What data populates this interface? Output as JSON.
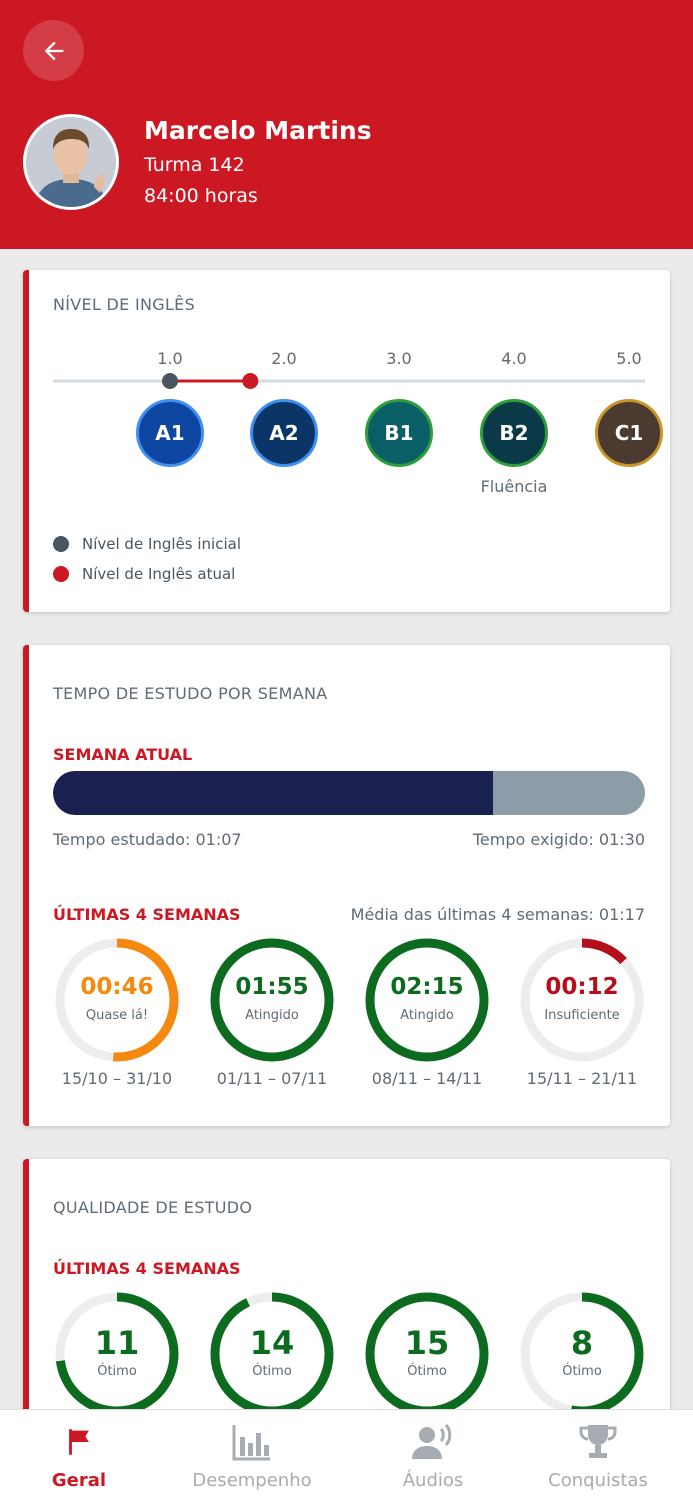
{
  "header": {
    "name": "Marcelo Martins",
    "class": "Turma 142",
    "hours": "84:00 horas"
  },
  "english_level": {
    "title": "NÍVEL DE INGLÊS",
    "ticks": [
      "1.0",
      "2.0",
      "3.0",
      "4.0",
      "5.0"
    ],
    "initial_level": 1.0,
    "current_level": 1.7,
    "levels": [
      {
        "label": "A1",
        "fill": "#0d47a1",
        "border": "#3f8ff0"
      },
      {
        "label": "A2",
        "fill": "#0b3566",
        "border": "#3f8ff0"
      },
      {
        "label": "B1",
        "fill": "#0a5e66",
        "border": "#2e9e3a"
      },
      {
        "label": "B2",
        "fill": "#0a3a48",
        "border": "#2e9e3a"
      },
      {
        "label": "C1",
        "fill": "#4a3a30",
        "border": "#c8952a"
      }
    ],
    "fluency_label": "Fluência",
    "legend_initial": "Nível de Inglês inicial",
    "legend_current": "Nível de Inglês atual",
    "initial_color": "#4a5560",
    "current_color": "#cc1823"
  },
  "study_time": {
    "title": "TEMPO DE ESTUDO POR SEMANA",
    "current_week_label": "SEMANA ATUAL",
    "progress_fraction": 0.744,
    "studied": "Tempo estudado: 01:07",
    "required": "Tempo exigido: 01:30",
    "last4_label": "ÚLTIMAS 4 SEMANAS",
    "average": "Média das últimas 4 semanas: 01:17",
    "weeks": [
      {
        "value": "00:46",
        "status": "Quase lá!",
        "range": "15/10 – 31/10",
        "fraction": 0.51,
        "color": "#f5880f"
      },
      {
        "value": "01:55",
        "status": "Atingido",
        "range": "01/11 – 07/11",
        "fraction": 1.0,
        "color": "#0c6b1f"
      },
      {
        "value": "02:15",
        "status": "Atingido",
        "range": "08/11 – 14/11",
        "fraction": 1.0,
        "color": "#0c6b1f"
      },
      {
        "value": "00:12",
        "status": "Insuficiente",
        "range": "15/11 – 21/11",
        "fraction": 0.13,
        "color": "#b3101c"
      }
    ]
  },
  "study_quality": {
    "title": "QUALIDADE DE ESTUDO",
    "last4_label": "ÚLTIMAS 4 SEMANAS",
    "weeks": [
      {
        "value": "11",
        "status": "Ótimo",
        "fraction": 0.73,
        "color": "#0c6b1f"
      },
      {
        "value": "14",
        "status": "Ótimo",
        "fraction": 0.93,
        "color": "#0c6b1f"
      },
      {
        "value": "15",
        "status": "Ótimo",
        "fraction": 1.0,
        "color": "#0c6b1f"
      },
      {
        "value": "8",
        "status": "Ótimo",
        "fraction": 0.53,
        "color": "#0c6b1f"
      }
    ]
  },
  "nav": {
    "items": [
      {
        "label": "Geral",
        "icon": "flag-icon",
        "active": true
      },
      {
        "label": "Desempenho",
        "icon": "bar-chart-icon",
        "active": false
      },
      {
        "label": "Áudios",
        "icon": "speaking-person-icon",
        "active": false
      },
      {
        "label": "Conquistas",
        "icon": "trophy-icon",
        "active": false
      }
    ]
  }
}
